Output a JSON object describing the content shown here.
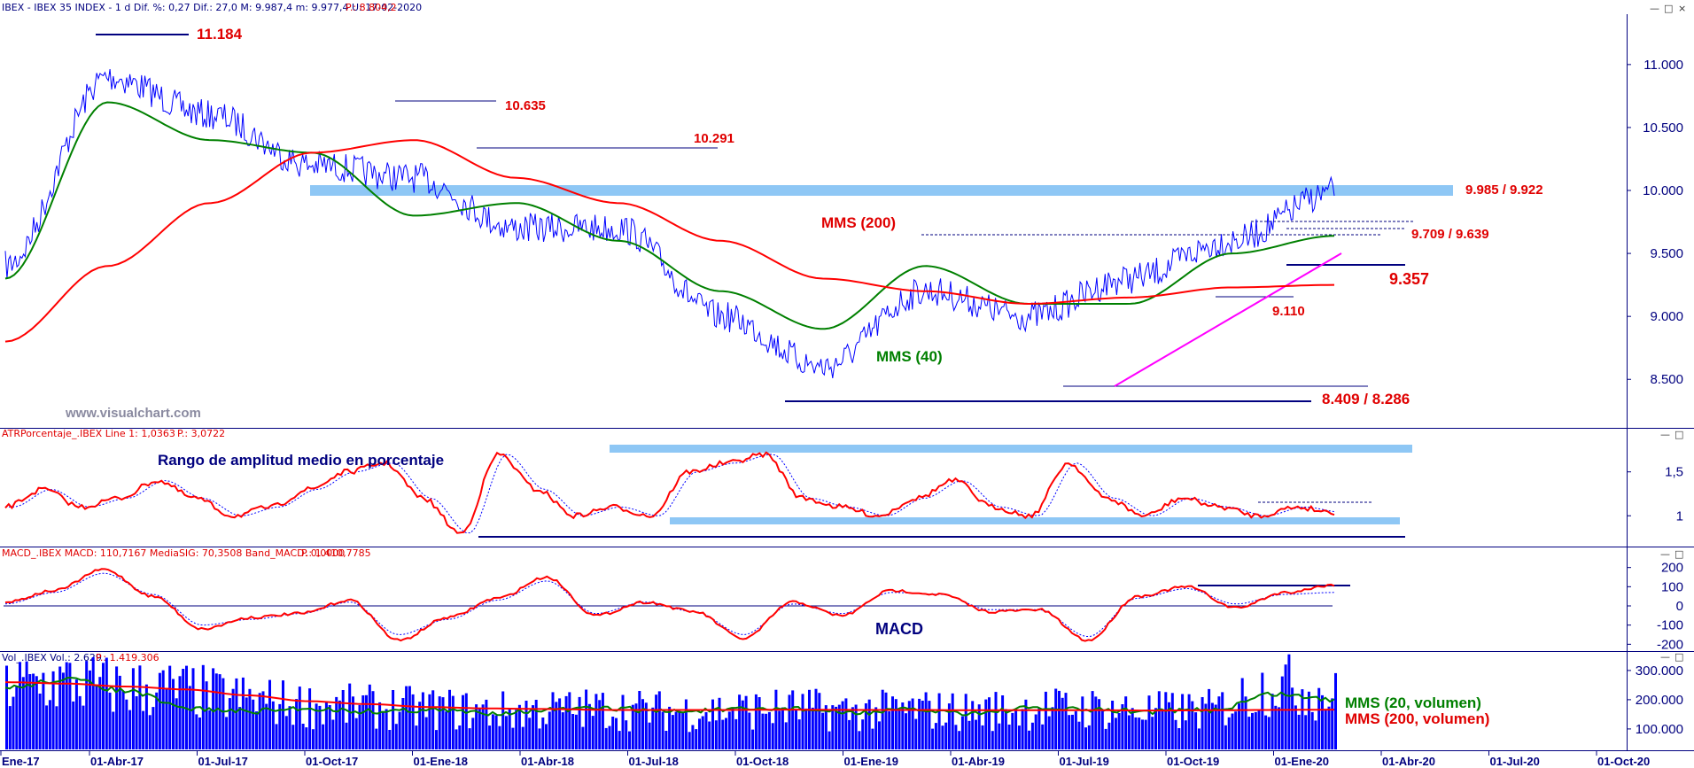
{
  "header": {
    "main": "IBEX - IBEX 35 INDEX - 1 d Dif. %: 0,27 Dif.: 27,0 M: 9.987,4 m: 9.977,4 U: 17-02-2020",
    "main_p": "P.: 8.804,2",
    "atr": "ATRPorcentaje_.IBEX Line 1: 1,0363",
    "atr_p": "P.: 3,0722",
    "macd": "MACD_.IBEX MACD: 110,7167 MediaSIG: 70,3508 Band_MACD: 0,0000",
    "macd_p": "P.: 1.410,7785",
    "vol": "Vol_.IBEX Vol.: 2.629",
    "vol_p": "P.: 1.419.306"
  },
  "window_buttons": [
    "—",
    "□",
    "×"
  ],
  "watermark": "www.visualchart.com",
  "colors": {
    "price": "#0000ff",
    "mm40": "#008000",
    "mm200": "#ff0000",
    "zone": "#8ec7f5",
    "level": "#00007f",
    "trend": "#ff00ff",
    "axis": "#00007f",
    "label": "#e00000"
  },
  "annotations": {
    "a_11184": "11.184",
    "a_10635": "10.635",
    "a_10291": "10.291",
    "a_9985": "9.985 / 9.922",
    "a_9709": "9.709 / 9.639",
    "a_9357": "9.357",
    "a_9110": "9.110",
    "a_8409": "8.409 / 8.286",
    "mms200": "MMS (200)",
    "mms40": "MMS (40)",
    "atr_title": "Rango de amplitud medio en porcentaje",
    "macd_title": "MACD",
    "vol_mms20": "MMS (20, volumen)",
    "vol_mms200": "MMS (200, volumen)"
  },
  "chart_data": [
    {
      "type": "line",
      "title": "IBEX - IBEX 35 INDEX - 1 d",
      "x": [
        "01-Ene-17",
        "01-Abr-17",
        "01-Jul-17",
        "01-Oct-17",
        "01-Ene-18",
        "01-Abr-18",
        "01-Jul-18",
        "01-Oct-18",
        "01-Ene-19",
        "01-Abr-19",
        "01-Jul-19",
        "01-Oct-19",
        "01-Ene-20",
        "17-Feb-20"
      ],
      "series": [
        {
          "name": "IBEX",
          "values": [
            9400,
            10900,
            10600,
            10200,
            10100,
            9700,
            9700,
            9000,
            8600,
            9200,
            9000,
            9300,
            9600,
            9987
          ]
        },
        {
          "name": "MMS (40)",
          "values": [
            9300,
            10700,
            10400,
            10300,
            9800,
            9900,
            9600,
            9200,
            8900,
            9400,
            9100,
            9100,
            9500,
            9639
          ]
        },
        {
          "name": "MMS (200)",
          "values": [
            8800,
            9400,
            9900,
            10300,
            10400,
            10100,
            9900,
            9600,
            9300,
            9200,
            9100,
            9150,
            9230,
            9250
          ]
        }
      ],
      "levels": [
        11184,
        10635,
        10291,
        9985,
        9922,
        9709,
        9639,
        9357,
        9110,
        8409,
        8286
      ],
      "y_ticks": [
        "11.000",
        "10.500",
        "10.000",
        "9.500",
        "9.000",
        "8.500"
      ],
      "x_ticks": [
        "Ene-17",
        "01-Abr-17",
        "01-Jul-17",
        "01-Oct-17",
        "01-Ene-18",
        "01-Abr-18",
        "01-Jul-18",
        "01-Oct-18",
        "01-Ene-19",
        "01-Abr-19",
        "01-Jul-19",
        "01-Oct-19",
        "01-Ene-20",
        "01-Abr-20",
        "01-Jul-20",
        "01-Oct-20"
      ],
      "ylim": [
        8150,
        11400
      ]
    },
    {
      "type": "line",
      "title": "ATRPorcentaje_.IBEX",
      "series": [
        {
          "name": "Line 1",
          "values": [
            1.1,
            1.3,
            1.1,
            1.2,
            1.4,
            1.2,
            1.0,
            1.1,
            1.3,
            1.5,
            1.6,
            1.2,
            0.8,
            1.7,
            1.3,
            1.0,
            1.1,
            1.0,
            1.5,
            1.6,
            1.7,
            1.2,
            1.1,
            1.0,
            1.2,
            1.4,
            1.1,
            1.0,
            1.6,
            1.2,
            1.0,
            1.2,
            1.1,
            1.0,
            1.1,
            1.04
          ]
        }
      ],
      "y_ticks": [
        "1,5",
        "1"
      ],
      "ylim": [
        0.7,
        1.85
      ]
    },
    {
      "type": "line",
      "title": "MACD_.IBEX",
      "series": [
        {
          "name": "MACD",
          "values": [
            20,
            80,
            190,
            50,
            -120,
            -60,
            -40,
            30,
            -180,
            -60,
            40,
            150,
            -50,
            20,
            -30,
            -170,
            20,
            -50,
            80,
            60,
            -30,
            -20,
            -180,
            50,
            100,
            -10,
            70,
            110
          ]
        },
        {
          "name": "MediaSIG",
          "values": [
            10,
            70,
            170,
            60,
            -100,
            -70,
            -40,
            20,
            -150,
            -70,
            30,
            130,
            -40,
            20,
            -30,
            -150,
            10,
            -40,
            70,
            60,
            -20,
            -20,
            -160,
            40,
            90,
            10,
            60,
            70
          ]
        }
      ],
      "y_ticks": [
        "200",
        "100",
        "0",
        "-100",
        "-200"
      ],
      "ylim": [
        -240,
        240
      ]
    },
    {
      "type": "bar",
      "title": "Vol_.IBEX",
      "series": [
        {
          "name": "Vol.",
          "values": [
            250000,
            260000,
            240000,
            230000,
            200000,
            180000,
            175000,
            170000,
            160000,
            165000,
            170000,
            160000,
            165000,
            170000,
            160000,
            165000,
            160000,
            170000,
            170000,
            160000,
            165000,
            260000,
            210000
          ]
        },
        {
          "name": "MMS (20, volumen)",
          "values": [
            240000,
            270000,
            230000,
            170000,
            160000,
            170000,
            160000,
            165000,
            155000,
            165000,
            170000,
            160000,
            165000,
            170000,
            155000,
            165000,
            155000,
            170000,
            165000,
            160000,
            165000,
            220000,
            200000
          ]
        },
        {
          "name": "MMS (200, volumen)",
          "values": [
            260000,
            255000,
            245000,
            235000,
            215000,
            195000,
            185000,
            175000,
            170000,
            168000,
            165000,
            165000,
            165000,
            166000,
            165000,
            165000,
            164000,
            164000,
            164000,
            163000,
            164000,
            165000,
            166000
          ]
        }
      ],
      "y_ticks": [
        "300.000",
        "200.000",
        "100.000"
      ],
      "ylim": [
        30000,
        330000
      ]
    }
  ]
}
